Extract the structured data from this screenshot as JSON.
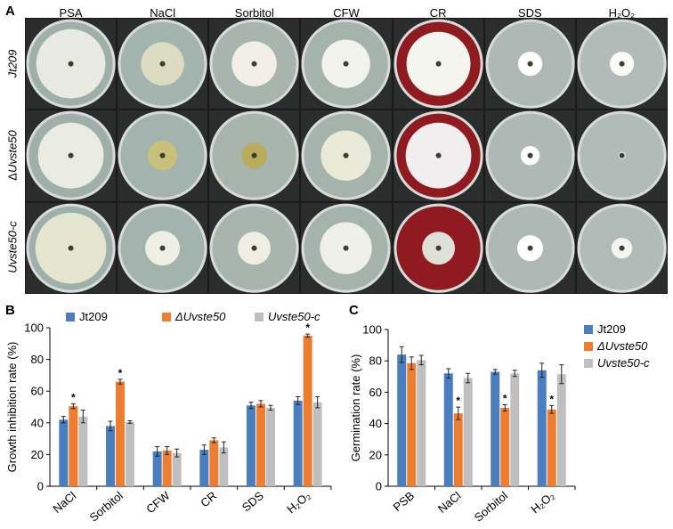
{
  "panel_a": {
    "letter": "A",
    "columns": [
      "PSA",
      "NaCl",
      "Sorbitol",
      "CFW",
      "CR",
      "SDS",
      "H₂O₂"
    ],
    "rows": [
      {
        "label": "Jt209",
        "italic": true,
        "prefix": ""
      },
      {
        "label": "Uvste50",
        "italic": true,
        "prefix": "Δ"
      },
      {
        "label": "Uvste50-c",
        "italic": true,
        "prefix": ""
      }
    ]
  },
  "chart_data": [
    {
      "letter": "B",
      "type": "bar",
      "ylabel": "Growth inhibition rate (%)",
      "xlabel": "",
      "ylim": [
        0,
        100
      ],
      "yticks": [
        0,
        20,
        40,
        60,
        80,
        100
      ],
      "legend_position": "top",
      "categories": [
        "NaCl",
        "Sorbitol",
        "CFW",
        "CR",
        "SDS",
        "H₂O₂"
      ],
      "series": [
        {
          "name": "Jt209",
          "color": "#4a7ebf",
          "values": [
            42,
            38,
            22,
            23,
            51,
            54
          ],
          "errors": [
            2,
            3,
            3,
            3,
            2,
            2.5
          ]
        },
        {
          "name": "ΔUvste50",
          "color": "#ed7d31",
          "values": [
            50.5,
            66,
            22.5,
            29,
            52,
            95
          ],
          "errors": [
            1.5,
            1.5,
            2.5,
            1.5,
            2,
            1
          ]
        },
        {
          "name": "Uvste50-c",
          "color": "#bfbfbf",
          "values": [
            44,
            40.5,
            21,
            24.5,
            49.5,
            53
          ],
          "errors": [
            4,
            0.8,
            2.5,
            3.5,
            1.5,
            3.5
          ]
        }
      ],
      "significance": [
        {
          "category": 0,
          "series": 1,
          "text": "*"
        },
        {
          "category": 1,
          "series": 1,
          "text": "*"
        },
        {
          "category": 5,
          "series": 1,
          "text": "*"
        }
      ]
    },
    {
      "letter": "C",
      "type": "bar",
      "ylabel": "Germination rate (%)",
      "xlabel": "",
      "ylim": [
        0,
        100
      ],
      "yticks": [
        0,
        20,
        40,
        60,
        80,
        100
      ],
      "legend_position": "right",
      "categories": [
        "PSB",
        "NaCl",
        "Sorbitol",
        "H₂O₂"
      ],
      "series": [
        {
          "name": "Jt209",
          "color": "#4a7ebf",
          "values": [
            84,
            72,
            73,
            74
          ],
          "errors": [
            5,
            3,
            1.5,
            4.5
          ]
        },
        {
          "name": "ΔUvste50",
          "color": "#ed7d31",
          "values": [
            78.5,
            46.5,
            50,
            49
          ],
          "errors": [
            4,
            4,
            2,
            2.5
          ]
        },
        {
          "name": "Uvste50-c",
          "color": "#bfbfbf",
          "values": [
            80.5,
            69,
            72,
            71.5
          ],
          "errors": [
            3,
            3,
            2,
            6
          ]
        }
      ],
      "significance": [
        {
          "category": 1,
          "series": 1,
          "text": "*"
        },
        {
          "category": 2,
          "series": 1,
          "text": "*"
        },
        {
          "category": 3,
          "series": 1,
          "text": "*"
        }
      ]
    }
  ]
}
